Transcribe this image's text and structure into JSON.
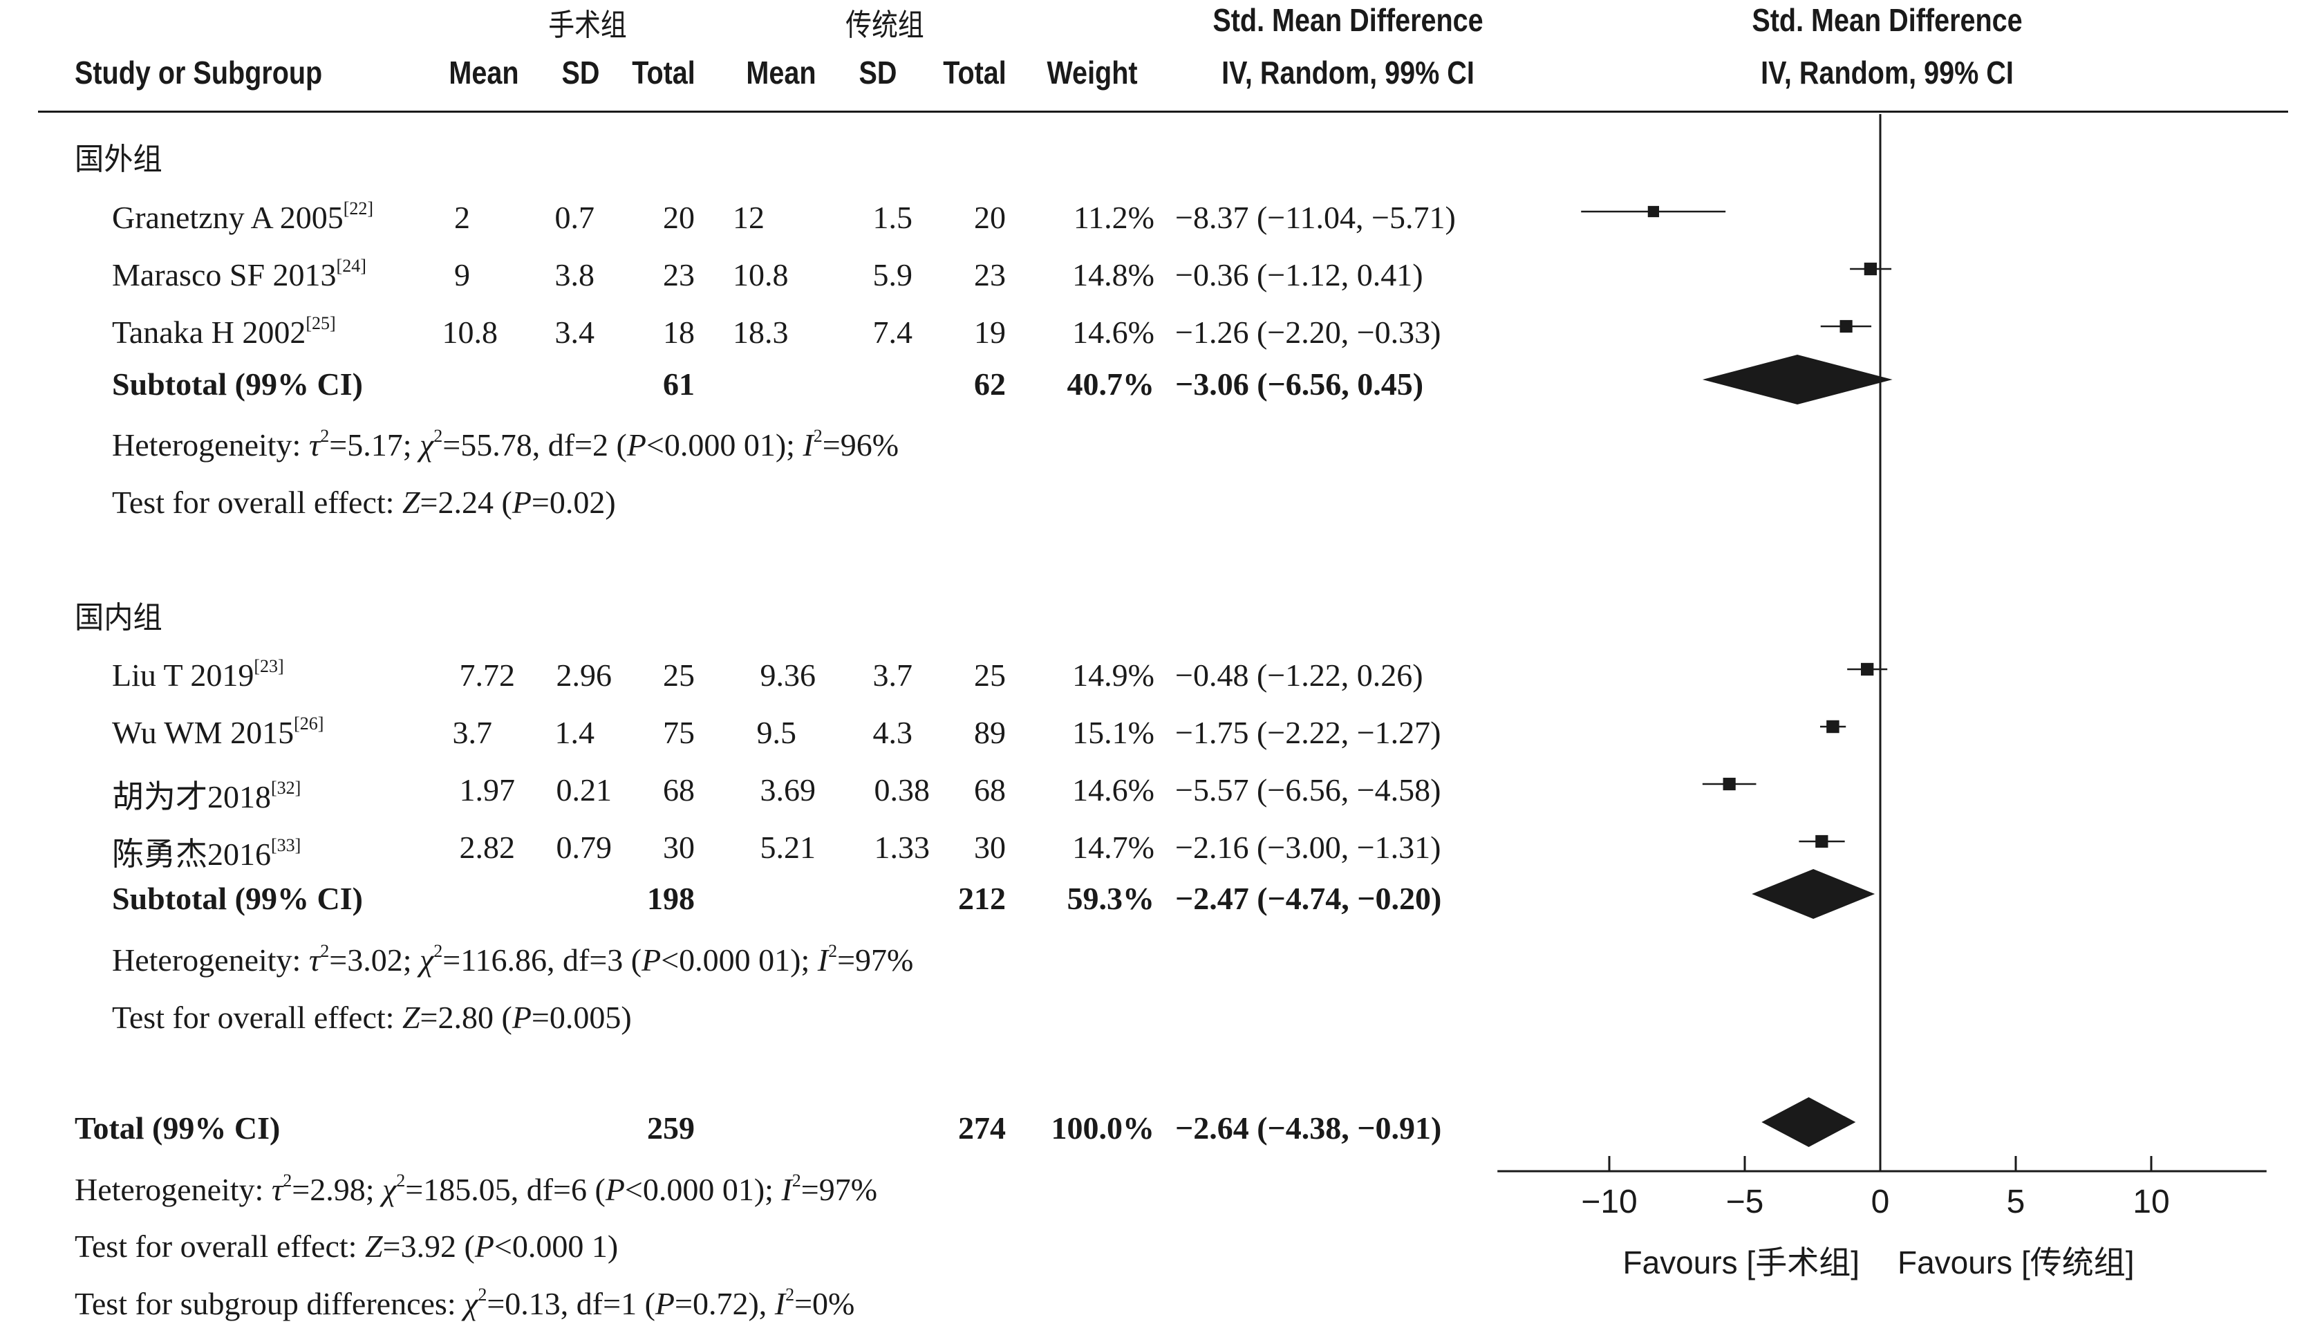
{
  "chart_data": {
    "type": "forest",
    "group_headers": {
      "experimental": "手术组",
      "control": "传统组"
    },
    "effect_header": {
      "line1": "Std. Mean Difference",
      "line2": "IV, Random, 99% CI"
    },
    "plot_header": {
      "line1": "Std. Mean Difference",
      "line2": "IV, Random, 99% CI"
    },
    "columns": {
      "study": "Study or Subgroup",
      "mean1": "Mean",
      "sd1": "SD",
      "total1": "Total",
      "mean2": "Mean",
      "sd2": "SD",
      "total2": "Total",
      "weight": "Weight"
    },
    "subgroups": [
      {
        "name": "国外组",
        "studies": [
          {
            "study": "Granetzny A 2005",
            "ref": "[22]",
            "mean1": "2",
            "sd1": "0.7",
            "total1": "20",
            "mean2": "12",
            "sd2": "1.5",
            "total2": "20",
            "weight": "11.2%",
            "ci_text": "−8.37 (−11.04, −5.71)",
            "smd": -8.37,
            "lower": -11.04,
            "upper": -5.71
          },
          {
            "study": "Marasco SF 2013",
            "ref": "[24]",
            "mean1": "9",
            "sd1": "3.8",
            "total1": "23",
            "mean2": "10.8",
            "sd2": "5.9",
            "total2": "23",
            "weight": "14.8%",
            "ci_text": "−0.36 (−1.12, 0.41)",
            "smd": -0.36,
            "lower": -1.12,
            "upper": 0.41
          },
          {
            "study": "Tanaka H 2002",
            "ref": "[25]",
            "mean1": "10.8",
            "sd1": "3.4",
            "total1": "18",
            "mean2": "18.3",
            "sd2": "7.4",
            "total2": "19",
            "weight": "14.6%",
            "ci_text": "−1.26 (−2.20, −0.33)",
            "smd": -1.26,
            "lower": -2.2,
            "upper": -0.33
          }
        ],
        "subtotal": {
          "label": "Subtotal (99% CI)",
          "total1": "61",
          "total2": "62",
          "weight": "40.7%",
          "ci_text": "−3.06 (−6.56, 0.45)",
          "smd": -3.06,
          "lower": -6.56,
          "upper": 0.45
        },
        "heterogeneity": {
          "prefix": "Heterogeneity: ",
          "tau": "τ",
          "tau_val": "=5.17; ",
          "chi": "χ",
          "chi_val": "=55.78, df=2 (",
          "p": "P",
          "p_val": "<0.000 01); ",
          "i": "I",
          "i_val": "=96%"
        },
        "overall": {
          "prefix": "Test for overall effect: ",
          "z": "Z",
          "z_val": "=2.24 (",
          "p": "P",
          "p_val": "=0.02)"
        }
      },
      {
        "name": "国内组",
        "studies": [
          {
            "study": "Liu T 2019",
            "ref": "[23]",
            "mean1": "7.72",
            "sd1": "2.96",
            "total1": "25",
            "mean2": "9.36",
            "sd2": "3.7",
            "total2": "25",
            "weight": "14.9%",
            "ci_text": "−0.48 (−1.22, 0.26)",
            "smd": -0.48,
            "lower": -1.22,
            "upper": 0.26
          },
          {
            "study": "Wu WM 2015",
            "ref": "[26]",
            "mean1": "3.7",
            "sd1": "1.4",
            "total1": "75",
            "mean2": "9.5",
            "sd2": "4.3",
            "total2": "89",
            "weight": "15.1%",
            "ci_text": "−1.75 (−2.22, −1.27)",
            "smd": -1.75,
            "lower": -2.22,
            "upper": -1.27
          },
          {
            "study": "胡为才2018",
            "ref": "[32]",
            "mean1": "1.97",
            "sd1": "0.21",
            "total1": "68",
            "mean2": "3.69",
            "sd2": "0.38",
            "total2": "68",
            "weight": "14.6%",
            "ci_text": "−5.57 (−6.56, −4.58)",
            "smd": -5.57,
            "lower": -6.56,
            "upper": -4.58
          },
          {
            "study": "陈勇杰2016",
            "ref": "[33]",
            "mean1": "2.82",
            "sd1": "0.79",
            "total1": "30",
            "mean2": "5.21",
            "sd2": "1.33",
            "total2": "30",
            "weight": "14.7%",
            "ci_text": "−2.16 (−3.00, −1.31)",
            "smd": -2.16,
            "lower": -3.0,
            "upper": -1.31
          }
        ],
        "subtotal": {
          "label": "Subtotal (99% CI)",
          "total1": "198",
          "total2": "212",
          "weight": "59.3%",
          "ci_text": "−2.47 (−4.74, −0.20)",
          "smd": -2.47,
          "lower": -4.74,
          "upper": -0.2
        },
        "heterogeneity": {
          "prefix": "Heterogeneity: ",
          "tau": "τ",
          "tau_val": "=3.02; ",
          "chi": "χ",
          "chi_val": "=116.86, df=3 (",
          "p": "P",
          "p_val": "<0.000 01); ",
          "i": "I",
          "i_val": "=97%"
        },
        "overall": {
          "prefix": "Test for overall effect: ",
          "z": "Z",
          "z_val": "=2.80 (",
          "p": "P",
          "p_val": "=0.005)"
        }
      }
    ],
    "total": {
      "label": "Total (99% CI)",
      "total1": "259",
      "total2": "274",
      "weight": "100.0%",
      "ci_text": "−2.64 (−4.38, −0.91)",
      "smd": -2.64,
      "lower": -4.38,
      "upper": -0.91,
      "heterogeneity": {
        "prefix": "Heterogeneity: ",
        "tau": "τ",
        "tau_val": "=2.98; ",
        "chi": "χ",
        "chi_val": "=185.05, df=6 (",
        "p": "P",
        "p_val": "<0.000 01); ",
        "i": "I",
        "i_val": "=97%"
      },
      "overall": {
        "prefix": "Test for overall effect: ",
        "z": "Z",
        "z_val": "=3.92 (",
        "p": "P",
        "p_val": "<0.000 1)"
      },
      "subgroup_diff": {
        "prefix": "Test for subgroup differences: ",
        "chi": "χ",
        "chi_val": "=0.13, df=1 (",
        "p": "P",
        "p_val": "=0.72), ",
        "i": "I",
        "i_val": "=0%"
      }
    },
    "x_axis": {
      "ticks": [
        -10,
        -5,
        0,
        5,
        10
      ],
      "tick_labels": [
        "−10",
        "−5",
        "0",
        "5",
        "10"
      ],
      "xlim": [
        -14,
        14
      ]
    },
    "favours_left": "Favours [手术组]",
    "favours_right": "Favours [传统组]"
  }
}
